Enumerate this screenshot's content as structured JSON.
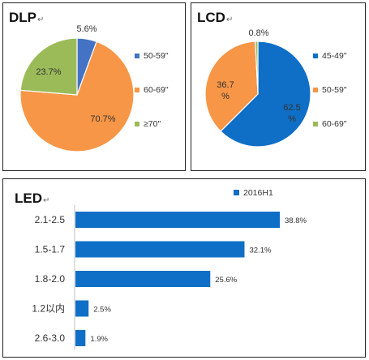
{
  "chart_data": [
    {
      "type": "pie",
      "title": "DLP",
      "slices": [
        {
          "label": "50-59\"",
          "value": 5.6,
          "display": "5.6%",
          "color": "#4472C4"
        },
        {
          "label": "60-69\"",
          "value": 70.7,
          "display": "70.7%",
          "color": "#F79646"
        },
        {
          "label": "≥70\"",
          "value": 23.7,
          "display": "23.7%",
          "color": "#9BBB59"
        }
      ],
      "legend_position": "right"
    },
    {
      "type": "pie",
      "title": "LCD",
      "slices": [
        {
          "label": "45-49\"",
          "value": 62.5,
          "display": "62.5 %",
          "color": "#0F6FC6"
        },
        {
          "label": "50-59\"",
          "value": 36.7,
          "display": "36.7 %",
          "color": "#F79646"
        },
        {
          "label": "60-69\"",
          "value": 0.8,
          "display": "0.8%",
          "color": "#9BBB59"
        }
      ],
      "legend_position": "right"
    },
    {
      "type": "bar",
      "orientation": "horizontal",
      "title": "LED",
      "categories": [
        "2.1-2.5",
        "1.5-1.7",
        "1.8-2.0",
        "1.2以内",
        "2.6-3.0"
      ],
      "series": [
        {
          "name": "2016H1",
          "values": [
            38.8,
            32.1,
            25.6,
            2.5,
            1.9
          ],
          "color": "#0F6FC6"
        }
      ],
      "value_labels": [
        "38.8%",
        "32.1%",
        "25.6%",
        "2.5%",
        "1.9%"
      ],
      "legend_position": "top"
    }
  ]
}
